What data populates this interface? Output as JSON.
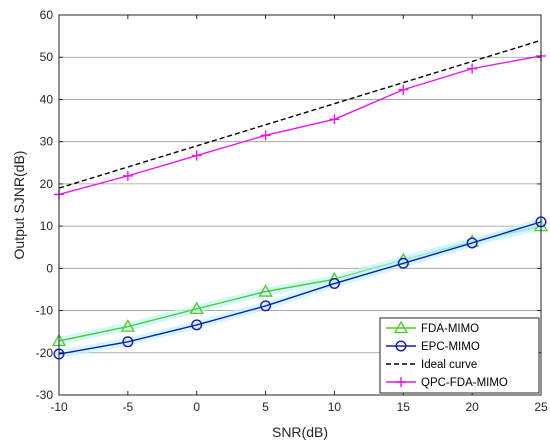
{
  "chart_data": {
    "type": "line",
    "xlabel": "SNR(dB)",
    "ylabel": "Output SJNR(dB)",
    "xlim": [
      -10,
      25
    ],
    "ylim": [
      -30,
      60
    ],
    "xticks": [
      -10,
      -5,
      0,
      5,
      10,
      15,
      20,
      25
    ],
    "yticks": [
      -30,
      -20,
      -10,
      0,
      10,
      20,
      30,
      40,
      50,
      60
    ],
    "x": [
      -10,
      -5,
      0,
      5,
      10,
      15,
      20,
      25
    ],
    "grid": "horizontal",
    "legend_position": "bottom-right",
    "series": [
      {
        "name": "FDA-MIMO",
        "values": [
          -17.2,
          -13.8,
          -9.6,
          -5.5,
          -2.6,
          2.0,
          6.3,
          10.0
        ],
        "color": "#4fc92a",
        "marker": "triangle",
        "dash": "solid"
      },
      {
        "name": "EPC-MIMO",
        "values": [
          -20.3,
          -17.4,
          -13.4,
          -8.9,
          -3.6,
          1.2,
          6.0,
          11.0
        ],
        "color": "#1a1aa6",
        "marker": "circle",
        "dash": "solid"
      },
      {
        "name": "Ideal curve",
        "values": [
          19.0,
          24.0,
          29.0,
          34.0,
          39.0,
          44.0,
          49.0,
          54.0
        ],
        "color": "#000000",
        "marker": "none",
        "dash": "dashed"
      },
      {
        "name": "QPC-FDA-MIMO",
        "values": [
          17.5,
          21.9,
          26.7,
          31.5,
          35.3,
          42.3,
          47.3,
          50.3
        ],
        "color": "#e817e8",
        "marker": "plus",
        "dash": "solid"
      }
    ]
  }
}
